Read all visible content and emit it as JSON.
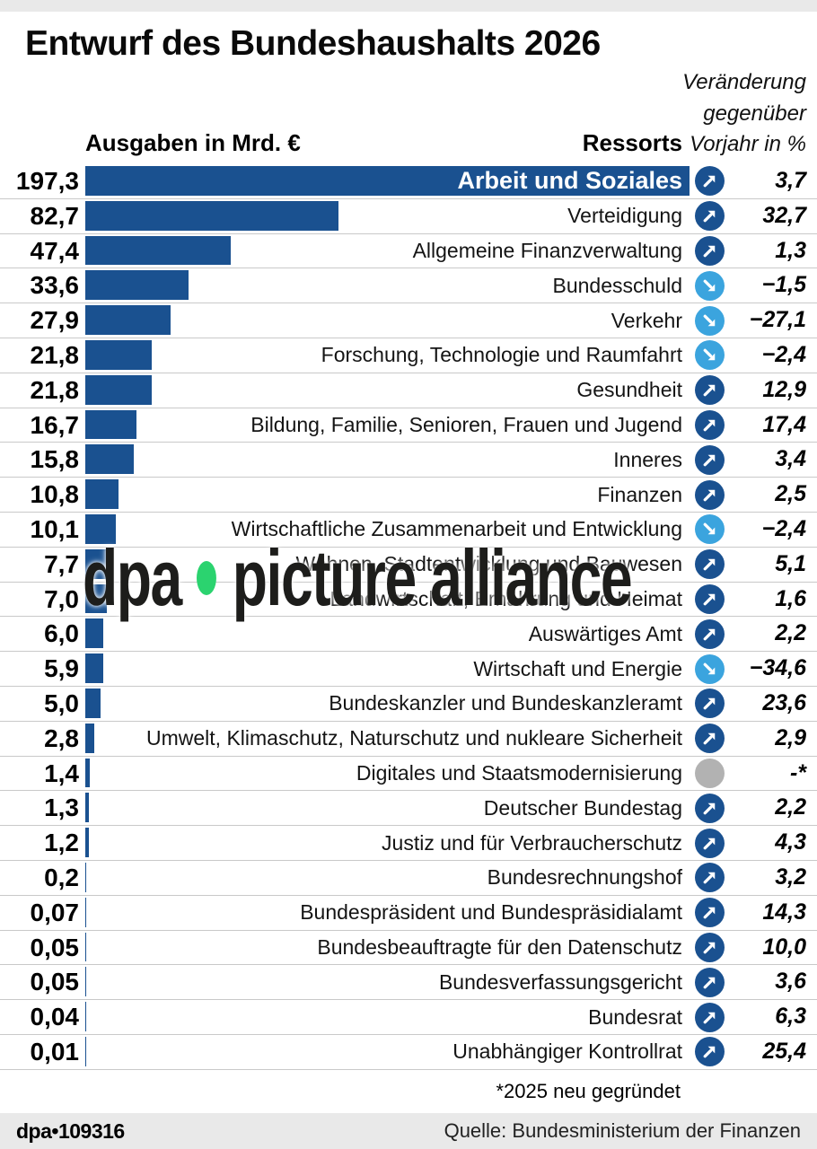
{
  "title": "Entwurf des Bundeshaushalts 2026",
  "header": {
    "left": "Ausgaben in Mrd. €",
    "middle": "Ressorts",
    "right_lines": [
      "Veränderung",
      "gegenüber",
      "Vorjahr in %"
    ]
  },
  "chart_data": {
    "type": "bar",
    "orientation": "horizontal",
    "title": "Entwurf des Bundeshaushalts 2026",
    "value_axis_label": "Ausgaben in Mrd. €",
    "category_axis_label": "Ressorts",
    "change_column_label": "Veränderung gegenüber Vorjahr in %",
    "xmax": 197.3,
    "grid": false,
    "colors": {
      "bar": "#1A5190",
      "trend_up": "#1A5190",
      "trend_down": "#3BA4DE",
      "trend_neutral": "#B2B2B2"
    },
    "rows": [
      {
        "label": "Arbeit und Soziales",
        "value": "197,3",
        "value_num": 197.3,
        "trend": "up",
        "change": "3,7",
        "label_inside": true
      },
      {
        "label": "Verteidigung",
        "value": "82,7",
        "value_num": 82.7,
        "trend": "up",
        "change": "32,7",
        "label_inside": false
      },
      {
        "label": "Allgemeine Finanzverwaltung",
        "value": "47,4",
        "value_num": 47.4,
        "trend": "up",
        "change": "1,3",
        "label_inside": false
      },
      {
        "label": "Bundesschuld",
        "value": "33,6",
        "value_num": 33.6,
        "trend": "down",
        "change": "−1,5",
        "label_inside": false
      },
      {
        "label": "Verkehr",
        "value": "27,9",
        "value_num": 27.9,
        "trend": "down",
        "change": "−27,1",
        "label_inside": false
      },
      {
        "label": "Forschung, Technologie und Raumfahrt",
        "value": "21,8",
        "value_num": 21.8,
        "trend": "down",
        "change": "−2,4",
        "label_inside": false
      },
      {
        "label": "Gesundheit",
        "value": "21,8",
        "value_num": 21.8,
        "trend": "up",
        "change": "12,9",
        "label_inside": false
      },
      {
        "label": "Bildung, Familie, Senioren, Frauen und Jugend",
        "value": "16,7",
        "value_num": 16.7,
        "trend": "up",
        "change": "17,4",
        "label_inside": false
      },
      {
        "label": "Inneres",
        "value": "15,8",
        "value_num": 15.8,
        "trend": "up",
        "change": "3,4",
        "label_inside": false
      },
      {
        "label": "Finanzen",
        "value": "10,8",
        "value_num": 10.8,
        "trend": "up",
        "change": "2,5",
        "label_inside": false
      },
      {
        "label": "Wirtschaftliche Zusammenarbeit und Entwicklung",
        "value": "10,1",
        "value_num": 10.1,
        "trend": "down",
        "change": "−2,4",
        "label_inside": false
      },
      {
        "label": "Wohnen, Stadtentwicklung und Bauwesen",
        "value": "7,7",
        "value_num": 7.7,
        "trend": "up",
        "change": "5,1",
        "label_inside": false
      },
      {
        "label": "Landwirtschaft, Ernährung und Heimat",
        "value": "7,0",
        "value_num": 7.0,
        "trend": "up",
        "change": "1,6",
        "label_inside": false
      },
      {
        "label": "Auswärtiges Amt",
        "value": "6,0",
        "value_num": 6.0,
        "trend": "up",
        "change": "2,2",
        "label_inside": false
      },
      {
        "label": "Wirtschaft und Energie",
        "value": "5,9",
        "value_num": 5.9,
        "trend": "down",
        "change": "−34,6",
        "label_inside": false
      },
      {
        "label": "Bundeskanzler und Bundeskanzleramt",
        "value": "5,0",
        "value_num": 5.0,
        "trend": "up",
        "change": "23,6",
        "label_inside": false
      },
      {
        "label": "Umwelt, Klimaschutz, Naturschutz und nukleare Sicherheit",
        "value": "2,8",
        "value_num": 2.8,
        "trend": "up",
        "change": "2,9",
        "label_inside": false
      },
      {
        "label": "Digitales und Staatsmodernisierung",
        "value": "1,4",
        "value_num": 1.4,
        "trend": "none",
        "change": "-*",
        "label_inside": false
      },
      {
        "label": "Deutscher Bundestag",
        "value": "1,3",
        "value_num": 1.3,
        "trend": "up",
        "change": "2,2",
        "label_inside": false
      },
      {
        "label": "Justiz und für Verbraucherschutz",
        "value": "1,2",
        "value_num": 1.2,
        "trend": "up",
        "change": "4,3",
        "label_inside": false
      },
      {
        "label": "Bundesrechnungshof",
        "value": "0,2",
        "value_num": 0.2,
        "trend": "up",
        "change": "3,2",
        "label_inside": false
      },
      {
        "label": "Bundespräsident und Bundespräsidialamt",
        "value": "0,07",
        "value_num": 0.07,
        "trend": "up",
        "change": "14,3",
        "label_inside": false
      },
      {
        "label": "Bundesbeauftragte für den Datenschutz",
        "value": "0,05",
        "value_num": 0.05,
        "trend": "up",
        "change": "10,0",
        "label_inside": false
      },
      {
        "label": "Bundesverfassungsgericht",
        "value": "0,05",
        "value_num": 0.05,
        "trend": "up",
        "change": "3,6",
        "label_inside": false
      },
      {
        "label": "Bundesrat",
        "value": "0,04",
        "value_num": 0.04,
        "trend": "up",
        "change": "6,3",
        "label_inside": false
      },
      {
        "label": "Unabhängiger Kontrollrat",
        "value": "0,01",
        "value_num": 0.01,
        "trend": "up",
        "change": "25,4",
        "label_inside": false
      }
    ]
  },
  "footnote": "*2025 neu gegründet",
  "watermark": {
    "left": "dpa",
    "right": "picture alliance"
  },
  "footer": {
    "left": "dpa•109316",
    "right": "Quelle: Bundesministerium der Finanzen"
  }
}
